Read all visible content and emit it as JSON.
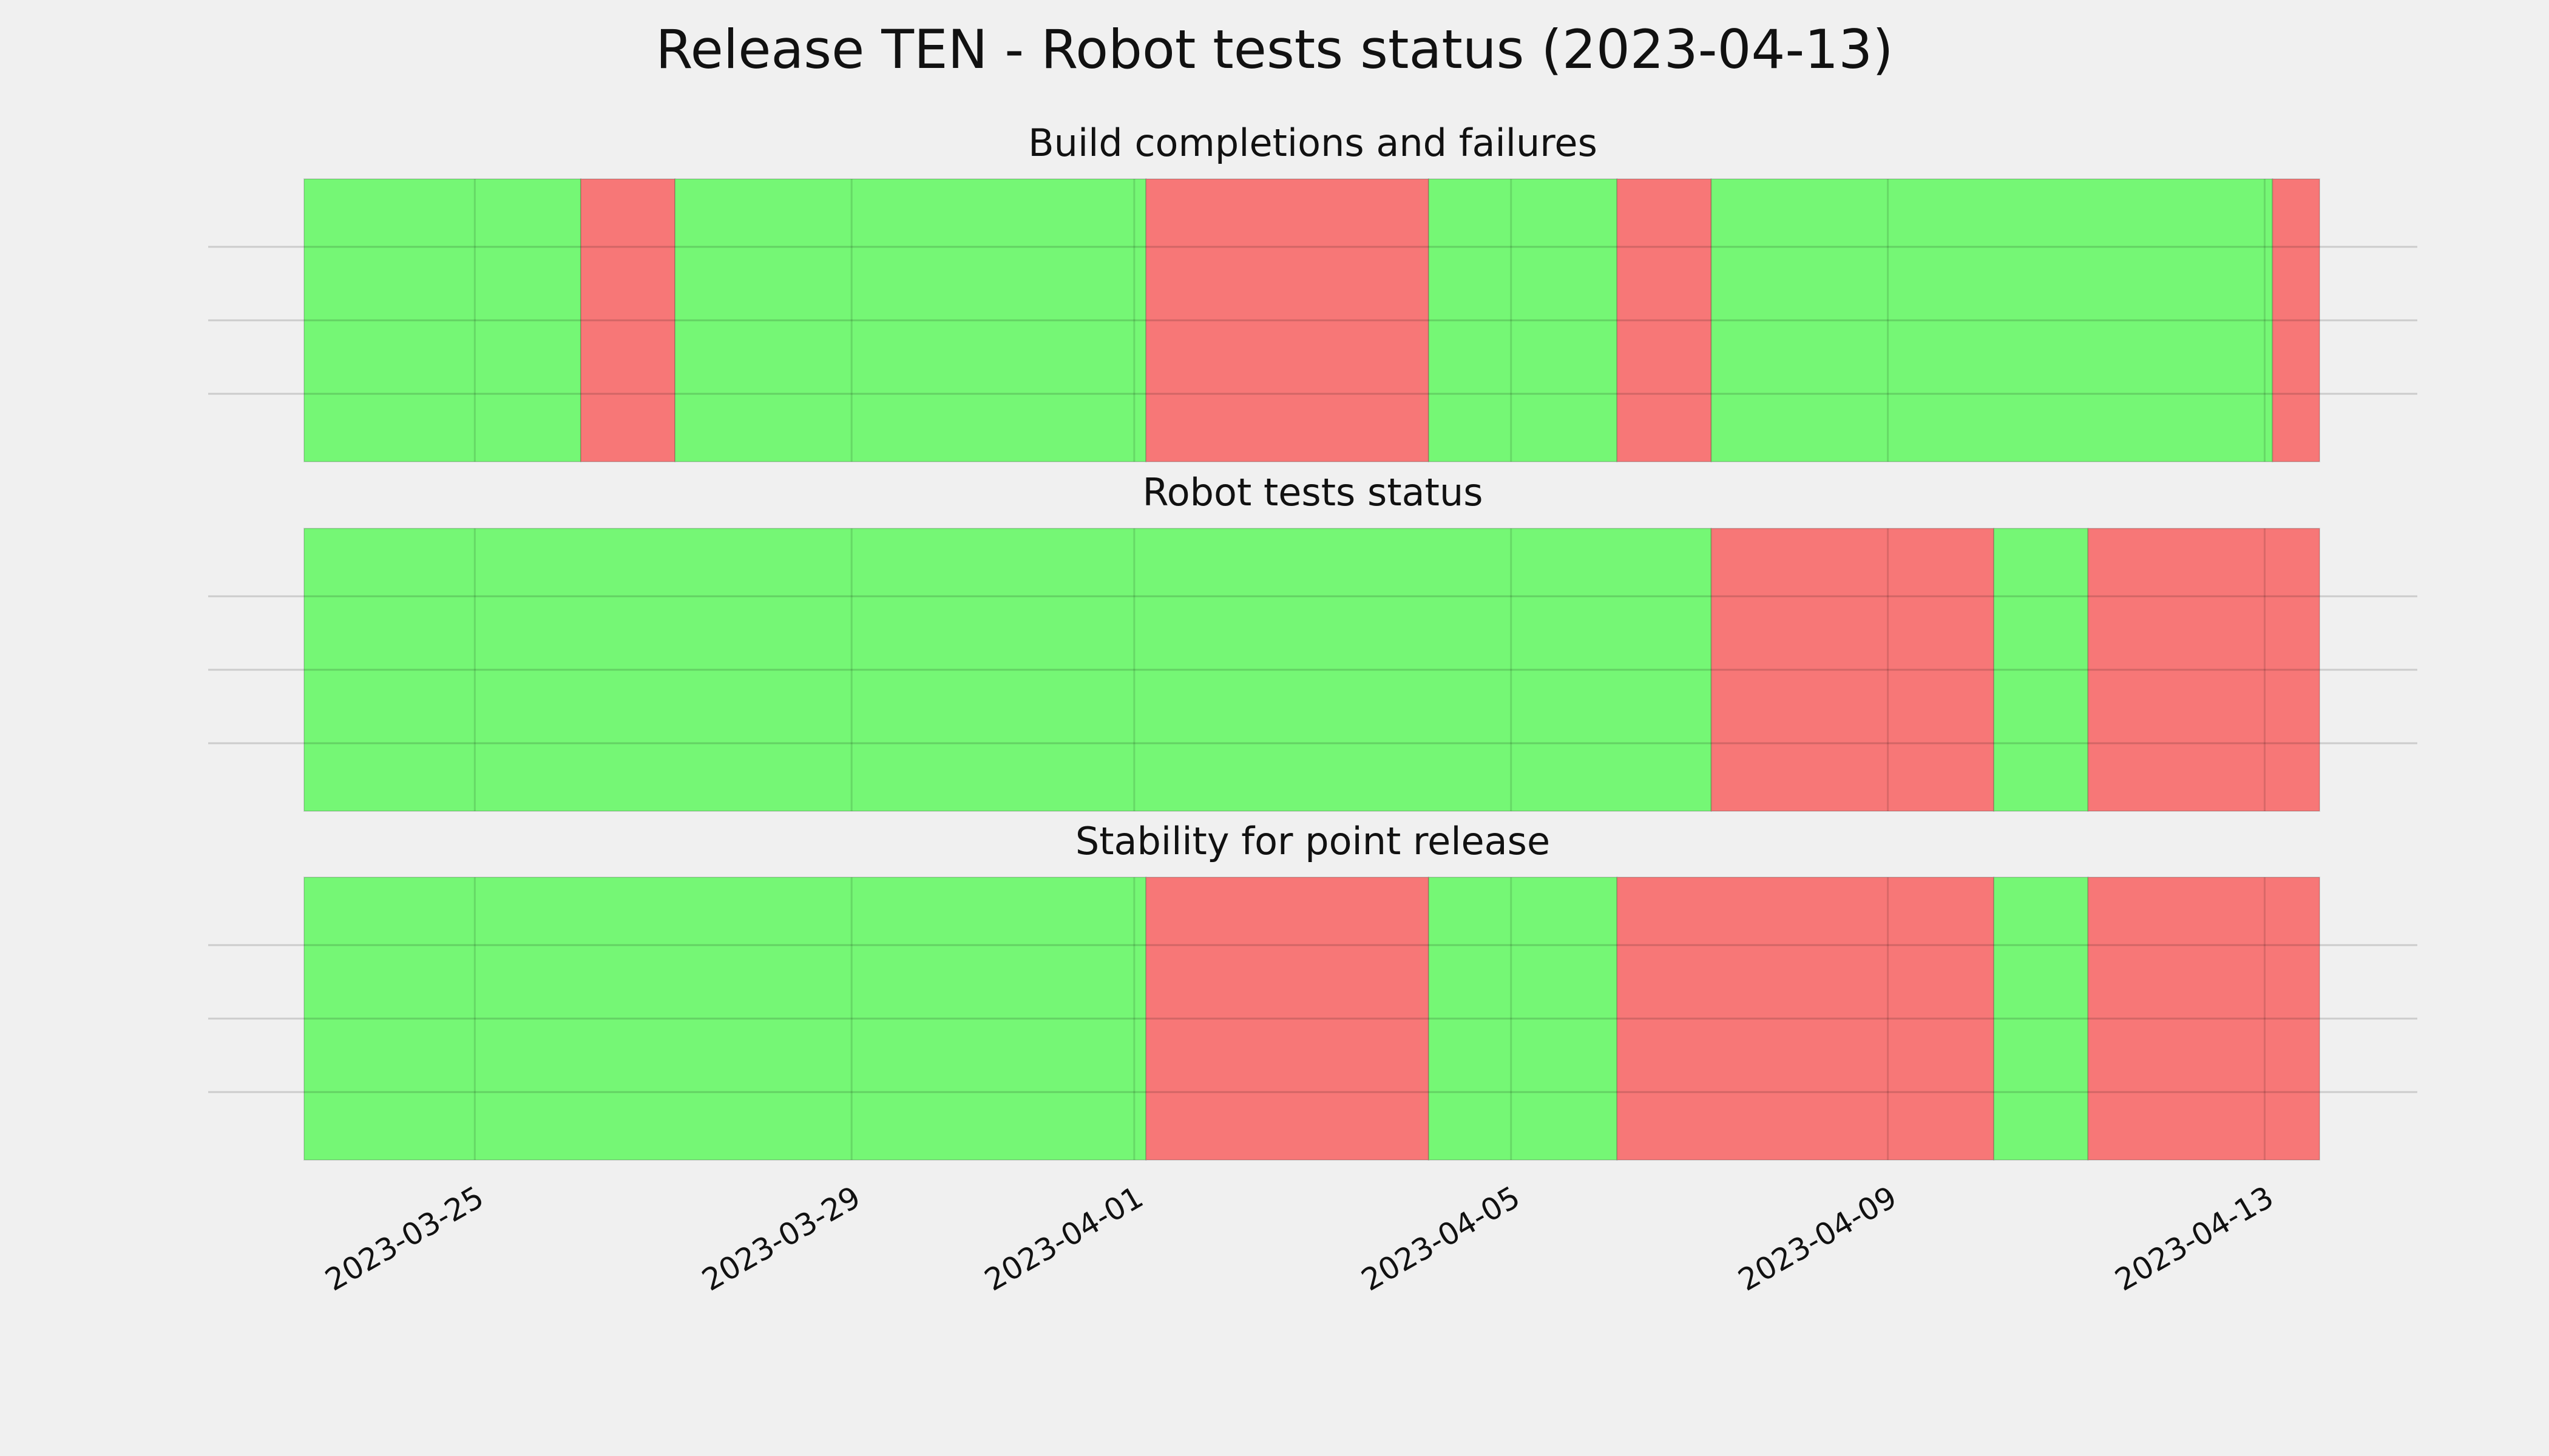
{
  "title": "Release TEN - Robot tests status (2023-04-13)",
  "chart_data": [
    {
      "type": "timeline",
      "title": "Build completions and failures",
      "spans": [
        {
          "start": "2023-03-23T04:30",
          "end": "2023-03-26T03:00",
          "color": "#75f775"
        },
        {
          "start": "2023-03-26T03:00",
          "end": "2023-03-27T03:00",
          "color": "#f77777"
        },
        {
          "start": "2023-03-27T03:00",
          "end": "2023-04-01T03:00",
          "color": "#75f775"
        },
        {
          "start": "2023-04-01T03:00",
          "end": "2023-04-04T03:00",
          "color": "#f77777"
        },
        {
          "start": "2023-04-04T03:00",
          "end": "2023-04-06T03:00",
          "color": "#75f775"
        },
        {
          "start": "2023-04-06T03:00",
          "end": "2023-04-07T03:00",
          "color": "#f77777"
        },
        {
          "start": "2023-04-07T03:00",
          "end": "2023-04-13T02:00",
          "color": "#75f775"
        },
        {
          "start": "2023-04-13T02:00",
          "end": "2023-04-13T14:00",
          "color": "#f77777"
        }
      ]
    },
    {
      "type": "timeline",
      "title": "Robot tests status",
      "spans": [
        {
          "start": "2023-03-23T04:30",
          "end": "2023-04-07T03:00",
          "color": "#75f775"
        },
        {
          "start": "2023-04-07T03:00",
          "end": "2023-04-10T03:00",
          "color": "#f77777"
        },
        {
          "start": "2023-04-10T03:00",
          "end": "2023-04-11T03:00",
          "color": "#75f775"
        },
        {
          "start": "2023-04-11T03:00",
          "end": "2023-04-13T14:00",
          "color": "#f77777"
        }
      ]
    },
    {
      "type": "timeline",
      "title": "Stability for point release",
      "spans": [
        {
          "start": "2023-03-23T04:30",
          "end": "2023-04-01T03:00",
          "color": "#75f775"
        },
        {
          "start": "2023-04-01T03:00",
          "end": "2023-04-04T03:00",
          "color": "#f77777"
        },
        {
          "start": "2023-04-04T03:00",
          "end": "2023-04-06T03:00",
          "color": "#75f775"
        },
        {
          "start": "2023-04-06T03:00",
          "end": "2023-04-10T03:00",
          "color": "#f77777"
        },
        {
          "start": "2023-04-10T03:00",
          "end": "2023-04-11T03:00",
          "color": "#75f775"
        },
        {
          "start": "2023-04-11T03:00",
          "end": "2023-04-13T14:00",
          "color": "#f77777"
        }
      ],
      "xlim": [
        "2023-03-23T04:30",
        "2023-04-13T14:00"
      ],
      "xticks": [
        "2023-03-25",
        "2023-03-29",
        "2023-04-01",
        "2023-04-05",
        "2023-04-09",
        "2023-04-13"
      ]
    }
  ]
}
